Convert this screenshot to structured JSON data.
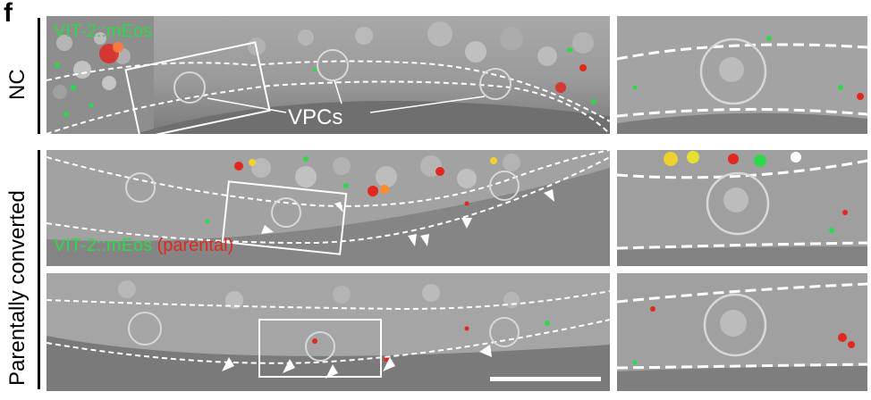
{
  "figure": {
    "letter": "f",
    "row_labels": {
      "top": "NC",
      "bottom": "Parentally converted"
    },
    "top_panel": {
      "channel_label": "VIT-2::mEos",
      "structure_label": "VPCs"
    },
    "middle_panel": {
      "channel_label": "VIT-2::mEos",
      "channel_sublabel": "(parental)"
    },
    "colors": {
      "green_channel": "#2fd84a",
      "red_channel": "#e0281e",
      "dic_background": "#8a8a8a",
      "overlay": "#ffffff"
    }
  }
}
